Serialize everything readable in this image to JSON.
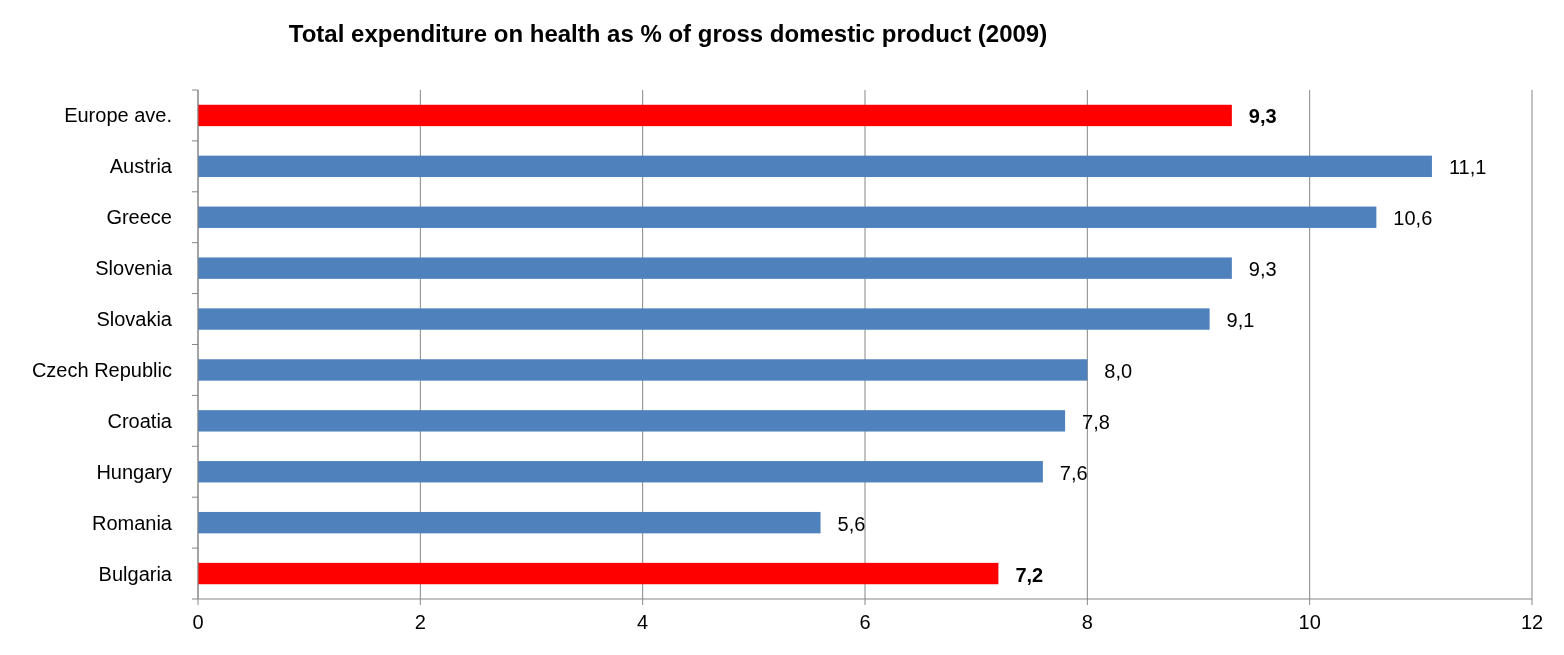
{
  "chart_data": {
    "type": "bar",
    "orientation": "horizontal",
    "title": "Total expenditure on health as % of gross domestic product (2009)",
    "categories": [
      "Europe ave.",
      "Austria",
      "Greece",
      "Slovenia",
      "Slovakia",
      "Czech Republic",
      "Croatia",
      "Hungary",
      "Romania",
      "Bulgaria"
    ],
    "values": [
      9.3,
      11.1,
      10.6,
      9.3,
      9.1,
      8.0,
      7.8,
      7.6,
      5.6,
      7.2
    ],
    "colors": [
      "#ff0000",
      "#4f81bd",
      "#4f81bd",
      "#4f81bd",
      "#4f81bd",
      "#4f81bd",
      "#4f81bd",
      "#4f81bd",
      "#4f81bd",
      "#ff0000"
    ],
    "value_labels": [
      "9,3",
      "11,1",
      "10,6",
      "9,3",
      "9,1",
      "8,0",
      "7,8",
      "7,6",
      "5,6",
      "7,2"
    ],
    "xlim": [
      0,
      12
    ],
    "xticks": [
      0,
      2,
      4,
      6,
      8,
      10,
      12
    ],
    "grid": "x"
  }
}
